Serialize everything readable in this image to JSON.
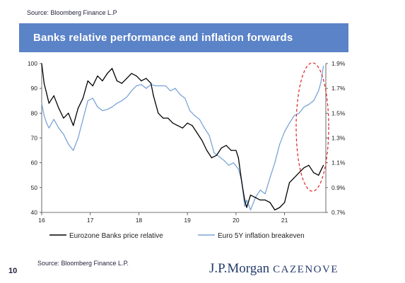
{
  "header": {
    "source_top": "Source:  Bloomberg Finance L.P",
    "title": "Banks relative performance and inflation forwards"
  },
  "footer": {
    "source": "Source: Bloomberg Finance L.P.",
    "page_number": "10",
    "brand_main": "J.P.Morgan",
    "brand_sub": "CAZENOVE"
  },
  "chart_data": {
    "type": "line",
    "x_ticks": [
      "16",
      "17",
      "18",
      "19",
      "20",
      "21"
    ],
    "xlim": [
      2016.0,
      2021.85
    ],
    "y_left": {
      "ylim": [
        40,
        100
      ],
      "ticks": [
        40,
        50,
        60,
        70,
        80,
        90,
        100
      ]
    },
    "y_right": {
      "ylim": [
        0.7,
        1.9
      ],
      "ticks": [
        "0.7%",
        "0.9%",
        "1.1%",
        "1.3%",
        "1.5%",
        "1.7%",
        "1.9%"
      ]
    },
    "legend_position": "bottom",
    "series": [
      {
        "name": "Eurozone Banks price relative",
        "axis": "left",
        "color": "#000000",
        "x": [
          2016.0,
          2016.05,
          2016.1,
          2016.15,
          2016.25,
          2016.35,
          2016.45,
          2016.55,
          2016.65,
          2016.75,
          2016.85,
          2016.95,
          2017.05,
          2017.15,
          2017.25,
          2017.35,
          2017.45,
          2017.55,
          2017.65,
          2017.75,
          2017.85,
          2017.95,
          2018.05,
          2018.15,
          2018.25,
          2018.3,
          2018.4,
          2018.5,
          2018.6,
          2018.7,
          2018.8,
          2018.9,
          2019.0,
          2019.1,
          2019.2,
          2019.3,
          2019.4,
          2019.5,
          2019.6,
          2019.7,
          2019.8,
          2019.9,
          2020.0,
          2020.05,
          2020.12,
          2020.18,
          2020.22,
          2020.3,
          2020.4,
          2020.5,
          2020.6,
          2020.7,
          2020.8,
          2020.9,
          2021.0,
          2021.1,
          2021.2,
          2021.3,
          2021.4,
          2021.5,
          2021.6,
          2021.7,
          2021.75,
          2021.8
        ],
        "values": [
          100,
          92,
          88,
          84,
          87,
          82,
          78,
          80,
          75,
          82,
          86,
          93,
          91,
          95,
          93,
          96,
          98,
          93,
          92,
          94,
          96,
          95,
          93,
          94,
          92,
          87,
          80,
          78,
          78,
          76,
          75,
          74,
          76,
          75,
          72,
          69,
          65,
          62,
          63,
          66,
          67,
          65,
          65,
          62,
          52,
          45,
          42,
          47,
          46,
          45,
          45,
          44,
          41,
          42,
          44,
          52,
          54,
          56,
          58,
          59,
          56,
          55,
          57,
          59
        ]
      },
      {
        "name": "Euro 5Y inflation breakeven",
        "axis": "right",
        "color": "#7ba4d6",
        "x": [
          2016.0,
          2016.05,
          2016.1,
          2016.15,
          2016.25,
          2016.35,
          2016.45,
          2016.55,
          2016.65,
          2016.75,
          2016.85,
          2016.95,
          2017.05,
          2017.15,
          2017.25,
          2017.35,
          2017.45,
          2017.55,
          2017.65,
          2017.75,
          2017.85,
          2017.95,
          2018.05,
          2018.15,
          2018.25,
          2018.35,
          2018.45,
          2018.55,
          2018.65,
          2018.75,
          2018.85,
          2018.95,
          2019.05,
          2019.15,
          2019.25,
          2019.35,
          2019.45,
          2019.55,
          2019.65,
          2019.75,
          2019.85,
          2019.95,
          2020.05,
          2020.12,
          2020.18,
          2020.22,
          2020.3,
          2020.4,
          2020.5,
          2020.6,
          2020.7,
          2020.8,
          2020.9,
          2021.0,
          2021.1,
          2021.2,
          2021.3,
          2021.4,
          2021.5,
          2021.6,
          2021.7,
          2021.75,
          2021.8
        ],
        "values": [
          1.58,
          1.48,
          1.42,
          1.38,
          1.45,
          1.38,
          1.33,
          1.25,
          1.2,
          1.3,
          1.45,
          1.6,
          1.62,
          1.55,
          1.52,
          1.53,
          1.55,
          1.58,
          1.6,
          1.63,
          1.68,
          1.72,
          1.73,
          1.7,
          1.73,
          1.72,
          1.72,
          1.72,
          1.68,
          1.7,
          1.65,
          1.62,
          1.52,
          1.48,
          1.45,
          1.38,
          1.32,
          1.18,
          1.15,
          1.12,
          1.08,
          1.1,
          1.05,
          0.95,
          0.75,
          0.8,
          0.72,
          0.82,
          0.88,
          0.85,
          0.98,
          1.1,
          1.25,
          1.35,
          1.42,
          1.48,
          1.5,
          1.55,
          1.57,
          1.6,
          1.68,
          1.75,
          1.88
        ]
      }
    ],
    "annotation": {
      "shape": "dashed-ellipse",
      "color": "#e02020"
    }
  }
}
